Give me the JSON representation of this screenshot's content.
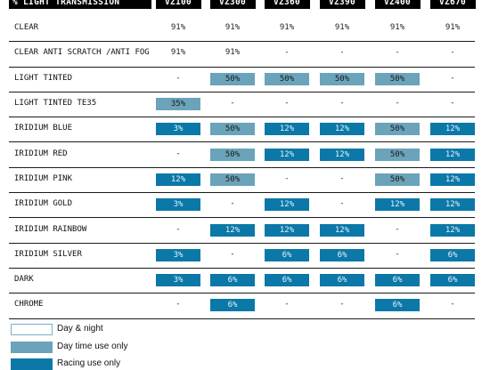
{
  "table": {
    "header_label": "% LIGHT TRANSMISSION",
    "columns": [
      "VZ100",
      "VZ300",
      "VZ360",
      "VZ390",
      "VZ400",
      "VZ670"
    ],
    "rows": [
      {
        "label": "CLEAR",
        "cells": [
          {
            "v": "91%",
            "t": "day_night"
          },
          {
            "v": "91%",
            "t": "day_night"
          },
          {
            "v": "91%",
            "t": "day_night"
          },
          {
            "v": "91%",
            "t": "day_night"
          },
          {
            "v": "91%",
            "t": "day_night"
          },
          {
            "v": "91%",
            "t": "day_night"
          }
        ]
      },
      {
        "label": "CLEAR ANTI SCRATCH /ANTI FOG",
        "cells": [
          {
            "v": "91%",
            "t": "day_night"
          },
          {
            "v": "91%",
            "t": "day_night"
          },
          {
            "v": "-",
            "t": "none"
          },
          {
            "v": "-",
            "t": "none"
          },
          {
            "v": "-",
            "t": "none"
          },
          {
            "v": "-",
            "t": "none"
          }
        ]
      },
      {
        "label": "LIGHT TINTED",
        "cells": [
          {
            "v": "-",
            "t": "none"
          },
          {
            "v": "50%",
            "t": "day"
          },
          {
            "v": "50%",
            "t": "day"
          },
          {
            "v": "50%",
            "t": "day"
          },
          {
            "v": "50%",
            "t": "day"
          },
          {
            "v": "-",
            "t": "none"
          }
        ]
      },
      {
        "label": "LIGHT TINTED TE35",
        "cells": [
          {
            "v": "35%",
            "t": "day"
          },
          {
            "v": "-",
            "t": "none"
          },
          {
            "v": "-",
            "t": "none"
          },
          {
            "v": "-",
            "t": "none"
          },
          {
            "v": "-",
            "t": "none"
          },
          {
            "v": "-",
            "t": "none"
          }
        ]
      },
      {
        "label": "IRIDIUM BLUE",
        "cells": [
          {
            "v": "3%",
            "t": "race"
          },
          {
            "v": "50%",
            "t": "day"
          },
          {
            "v": "12%",
            "t": "race"
          },
          {
            "v": "12%",
            "t": "race"
          },
          {
            "v": "50%",
            "t": "day"
          },
          {
            "v": "12%",
            "t": "race"
          }
        ]
      },
      {
        "label": "IRIDIUM RED",
        "cells": [
          {
            "v": "-",
            "t": "none"
          },
          {
            "v": "50%",
            "t": "day"
          },
          {
            "v": "12%",
            "t": "race"
          },
          {
            "v": "12%",
            "t": "race"
          },
          {
            "v": "50%",
            "t": "day"
          },
          {
            "v": "12%",
            "t": "race"
          }
        ]
      },
      {
        "label": "IRIDIUM PINK",
        "cells": [
          {
            "v": "12%",
            "t": "race"
          },
          {
            "v": "50%",
            "t": "day"
          },
          {
            "v": "-",
            "t": "none"
          },
          {
            "v": "-",
            "t": "none"
          },
          {
            "v": "50%",
            "t": "day"
          },
          {
            "v": "12%",
            "t": "race"
          }
        ]
      },
      {
        "label": "IRIDIUM GOLD",
        "cells": [
          {
            "v": "3%",
            "t": "race"
          },
          {
            "v": "-",
            "t": "none"
          },
          {
            "v": "12%",
            "t": "race"
          },
          {
            "v": "-",
            "t": "none"
          },
          {
            "v": "12%",
            "t": "race"
          },
          {
            "v": "12%",
            "t": "race"
          }
        ]
      },
      {
        "label": "IRIDIUM RAINBOW",
        "cells": [
          {
            "v": "-",
            "t": "none"
          },
          {
            "v": "12%",
            "t": "race"
          },
          {
            "v": "12%",
            "t": "race"
          },
          {
            "v": "12%",
            "t": "race"
          },
          {
            "v": "-",
            "t": "none"
          },
          {
            "v": "12%",
            "t": "race"
          }
        ]
      },
      {
        "label": "IRIDIUM SILVER",
        "cells": [
          {
            "v": "3%",
            "t": "race"
          },
          {
            "v": "-",
            "t": "none"
          },
          {
            "v": "6%",
            "t": "race"
          },
          {
            "v": "6%",
            "t": "race"
          },
          {
            "v": "-",
            "t": "none"
          },
          {
            "v": "6%",
            "t": "race"
          }
        ]
      },
      {
        "label": "DARK",
        "cells": [
          {
            "v": "3%",
            "t": "race"
          },
          {
            "v": "6%",
            "t": "race"
          },
          {
            "v": "6%",
            "t": "race"
          },
          {
            "v": "6%",
            "t": "race"
          },
          {
            "v": "6%",
            "t": "race"
          },
          {
            "v": "6%",
            "t": "race"
          }
        ]
      },
      {
        "label": "CHROME",
        "cells": [
          {
            "v": "-",
            "t": "none"
          },
          {
            "v": "6%",
            "t": "race"
          },
          {
            "v": "-",
            "t": "none"
          },
          {
            "v": "-",
            "t": "none"
          },
          {
            "v": "6%",
            "t": "race"
          },
          {
            "v": "-",
            "t": "none"
          }
        ]
      }
    ]
  },
  "legend": {
    "day_night": "Day & night",
    "day": "Day time use only",
    "race": "Racing use only"
  },
  "colors": {
    "day": "#6aa3ba",
    "race": "#0b78a8",
    "header_bg": "#000000"
  }
}
